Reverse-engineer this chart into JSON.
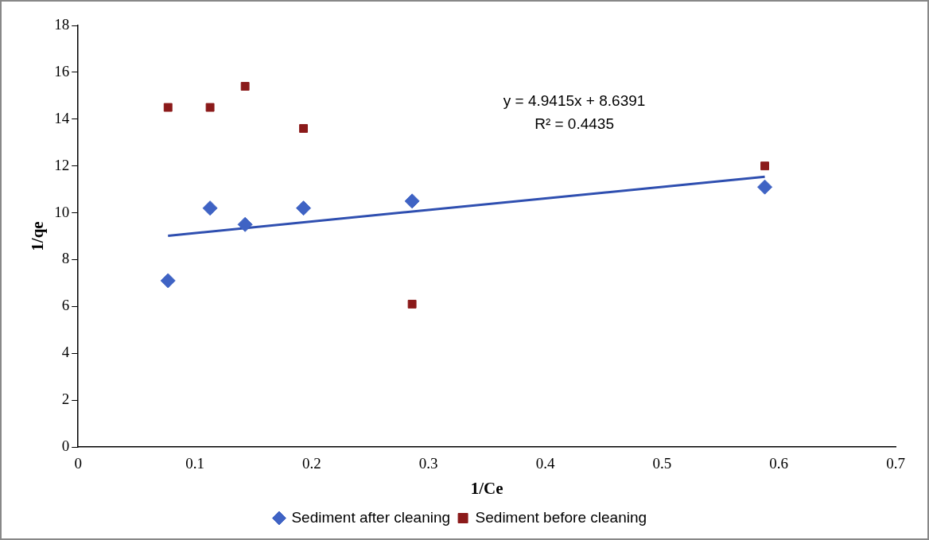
{
  "chart_data": {
    "type": "scatter",
    "xlabel": "1/Ce",
    "ylabel": "1/qe",
    "xlim": [
      0,
      0.7
    ],
    "xticks": [
      0,
      0.1,
      0.2,
      0.3,
      0.4,
      0.5,
      0.6,
      0.7
    ],
    "ylim": [
      0,
      18
    ],
    "yticks": [
      0,
      2,
      4,
      6,
      8,
      10,
      12,
      14,
      16,
      18
    ],
    "grid": false,
    "legend": "bottom",
    "series": [
      {
        "name": "Sediment after cleaning",
        "color": "#3f63c4",
        "marker": "diamond",
        "x": [
          0.077,
          0.113,
          0.143,
          0.193,
          0.286,
          0.588
        ],
        "values": [
          7.1,
          10.2,
          9.5,
          10.2,
          10.5,
          11.1
        ]
      },
      {
        "name": "Sediment before cleaning",
        "color": "#8b1a1a",
        "marker": "square",
        "x": [
          0.077,
          0.113,
          0.143,
          0.193,
          0.286,
          0.588
        ],
        "values": [
          14.5,
          14.5,
          15.4,
          13.6,
          6.1,
          12.0
        ]
      },
      {
        "type": "line",
        "color": "#2f4fb0",
        "marker": "none",
        "x": [
          0.077,
          0.588
        ],
        "values": [
          9.02,
          11.54
        ]
      }
    ],
    "annotations": [
      "y = 4.9415x + 8.6391",
      "R² = 0.4435"
    ]
  }
}
